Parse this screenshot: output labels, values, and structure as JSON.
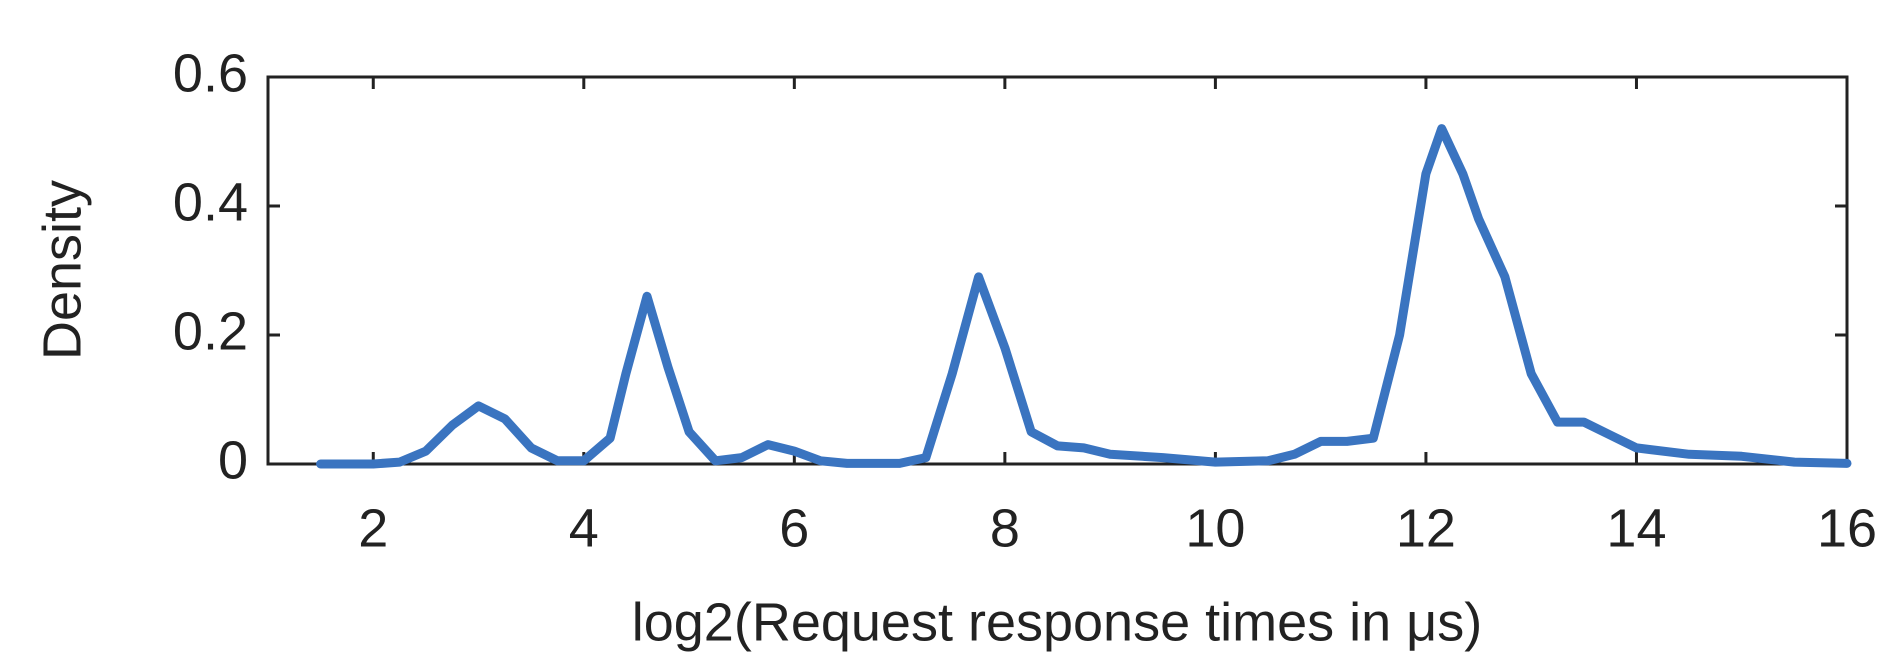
{
  "chart_data": {
    "type": "line",
    "x_label": "log2(Request response times in μs)",
    "y_label": "Density",
    "xlim": [
      1,
      16
    ],
    "xticks": [
      2,
      4,
      6,
      8,
      10,
      12,
      14,
      16
    ],
    "ylim": [
      0,
      0.6
    ],
    "yticks": [
      0,
      0.2,
      0.4,
      0.6
    ],
    "grid": false,
    "series": [
      {
        "color": "#3a74c0",
        "x": [
          1.5,
          2,
          2.25,
          2.5,
          2.75,
          3.0,
          3.25,
          3.5,
          3.75,
          4.0,
          4.25,
          4.4,
          4.6,
          4.8,
          5.0,
          5.25,
          5.5,
          5.75,
          6.0,
          6.25,
          6.5,
          7.0,
          7.25,
          7.5,
          7.75,
          8.0,
          8.25,
          8.5,
          8.75,
          9.0,
          9.5,
          10,
          10.5,
          10.75,
          11.0,
          11.25,
          11.5,
          11.75,
          12.0,
          12.15,
          12.35,
          12.5,
          12.75,
          13.0,
          13.25,
          13.5,
          13.75,
          14.0,
          14.5,
          15,
          15.5,
          16
        ],
        "values": [
          0,
          0,
          0.003,
          0.02,
          0.06,
          0.09,
          0.07,
          0.025,
          0.005,
          0.005,
          0.04,
          0.14,
          0.26,
          0.15,
          0.05,
          0.005,
          0.01,
          0.03,
          0.02,
          0.005,
          0.001,
          0.001,
          0.01,
          0.14,
          0.29,
          0.18,
          0.05,
          0.028,
          0.025,
          0.015,
          0.01,
          0.003,
          0.005,
          0.015,
          0.035,
          0.035,
          0.04,
          0.2,
          0.45,
          0.52,
          0.45,
          0.38,
          0.29,
          0.14,
          0.065,
          0.065,
          0.045,
          0.025,
          0.015,
          0.012,
          0.003,
          0.001
        ]
      }
    ]
  }
}
